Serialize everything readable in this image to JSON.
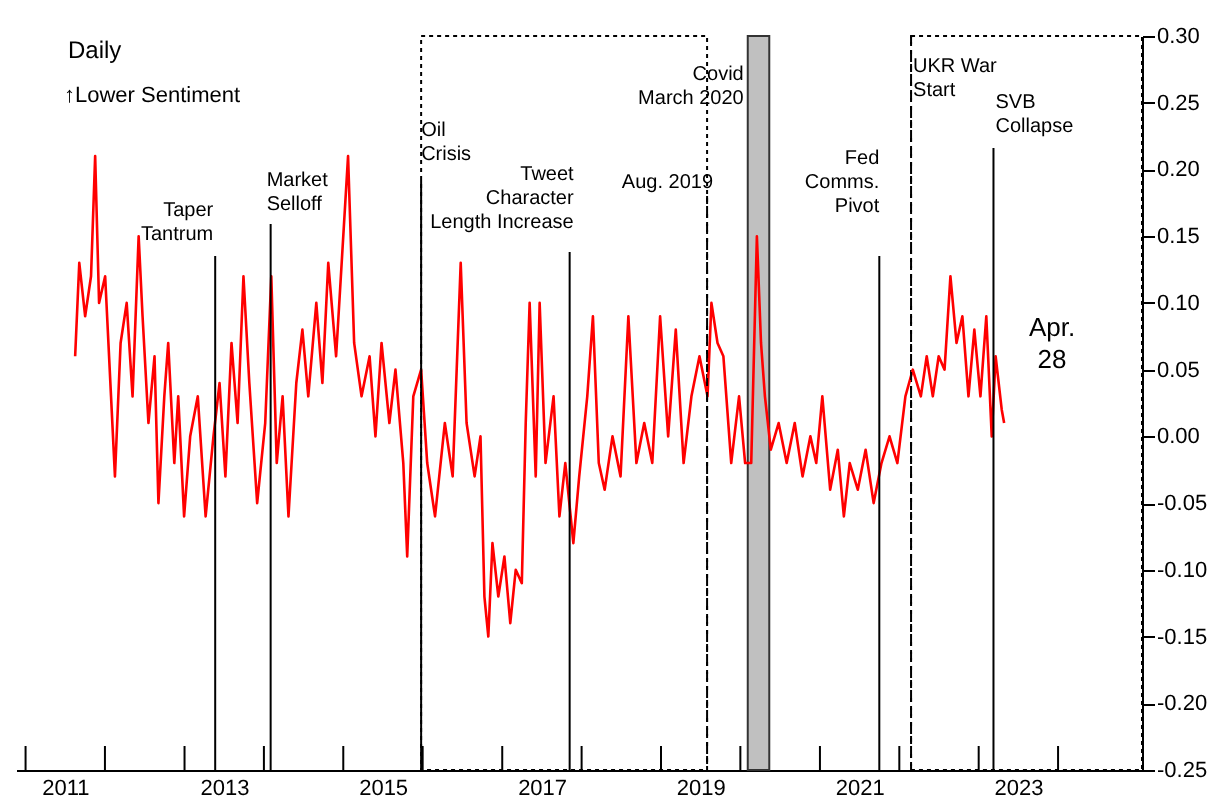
{
  "chart_data": {
    "type": "line",
    "title": "Daily",
    "annotations": [
      "↑Lower Sentiment",
      "Apr.\n28"
    ],
    "x": [
      "2011-08-17",
      "2011-09-05",
      "2011-10-02",
      "2011-10-29",
      "2011-11-17",
      "2011-12-05",
      "2012-01-02",
      "2012-01-29",
      "2012-02-16",
      "2012-03-13",
      "2012-04-10",
      "2012-05-07",
      "2012-06-04",
      "2012-06-22",
      "2012-07-19",
      "2012-08-16",
      "2012-09-03",
      "2012-09-30",
      "2012-10-18",
      "2012-11-15",
      "2012-12-03",
      "2012-12-30",
      "2013-01-27",
      "2013-03-03",
      "2013-04-08",
      "2013-05-14",
      "2013-06-11",
      "2013-07-08",
      "2013-08-05",
      "2013-09-02",
      "2013-09-29",
      "2013-10-26",
      "2013-12-01",
      "2014-01-07",
      "2014-02-04",
      "2014-03-01",
      "2014-03-28",
      "2014-04-24",
      "2014-05-30",
      "2014-06-27",
      "2014-07-24",
      "2014-08-30",
      "2014-09-27",
      "2014-10-24",
      "2014-11-29",
      "2015-01-23",
      "2015-02-20",
      "2015-03-26",
      "2015-05-02",
      "2015-05-29",
      "2015-06-26",
      "2015-08-01",
      "2015-08-29",
      "2015-10-04",
      "2015-10-22",
      "2015-11-19",
      "2015-12-25",
      "2016-01-22",
      "2016-02-27",
      "2016-04-12",
      "2016-05-18",
      "2016-06-24",
      "2016-07-21",
      "2016-08-27",
      "2016-09-23",
      "2016-10-11",
      "2016-10-29",
      "2016-11-17",
      "2016-12-14",
      "2017-01-11",
      "2017-02-07",
      "2017-03-04",
      "2017-04-01",
      "2017-04-19",
      "2017-05-07",
      "2017-06-04",
      "2017-06-22",
      "2017-07-19",
      "2017-08-25",
      "2017-09-21",
      "2017-10-18",
      "2017-11-24",
      "2017-12-21",
      "2018-01-27",
      "2018-02-22",
      "2018-03-21",
      "2018-04-17",
      "2018-05-23",
      "2018-06-29",
      "2018-08-04",
      "2018-09-10",
      "2018-10-16",
      "2018-11-22",
      "2018-12-28",
      "2019-02-03",
      "2019-03-10",
      "2019-04-15",
      "2019-05-21",
      "2019-06-27",
      "2019-08-03",
      "2019-08-21",
      "2019-09-18",
      "2019-10-15",
      "2019-11-20",
      "2019-12-26",
      "2020-01-23",
      "2020-02-20",
      "2020-03-17",
      "2020-04-05",
      "2020-04-23",
      "2020-05-20",
      "2020-06-25",
      "2020-08-01",
      "2020-09-07",
      "2020-10-13",
      "2020-11-18",
      "2020-12-15",
      "2021-01-12",
      "2021-02-17",
      "2021-03-24",
      "2021-04-21",
      "2021-05-18",
      "2021-06-24",
      "2021-07-30",
      "2021-09-05",
      "2021-10-11",
      "2021-11-17",
      "2021-12-23",
      "2022-01-29",
      "2022-03-04",
      "2022-04-10",
      "2022-05-07",
      "2022-06-04",
      "2022-07-01",
      "2022-07-28",
      "2022-08-24",
      "2022-09-21",
      "2022-10-18",
      "2022-11-15",
      "2022-12-12",
      "2023-01-09",
      "2023-02-05",
      "2023-03-02",
      "2023-03-20",
      "2023-04-17",
      "2023-04-28"
    ],
    "series": [
      {
        "color": "#ff0000",
        "values": [
          0.06,
          0.13,
          0.09,
          0.12,
          0.21,
          0.1,
          0.12,
          0.03,
          -0.03,
          0.07,
          0.1,
          0.03,
          0.15,
          0.09,
          0.01,
          0.06,
          -0.05,
          0.03,
          0.07,
          -0.02,
          0.03,
          -0.06,
          0.0,
          0.03,
          -0.06,
          0.0,
          0.04,
          -0.03,
          0.07,
          0.01,
          0.12,
          0.04,
          -0.05,
          0.01,
          0.12,
          -0.02,
          0.03,
          -0.06,
          0.04,
          0.08,
          0.03,
          0.1,
          0.04,
          0.13,
          0.06,
          0.21,
          0.07,
          0.03,
          0.06,
          0.0,
          0.07,
          0.01,
          0.05,
          -0.02,
          -0.09,
          0.03,
          0.05,
          -0.02,
          -0.06,
          0.01,
          -0.03,
          0.13,
          0.01,
          -0.03,
          0.0,
          -0.12,
          -0.15,
          -0.08,
          -0.12,
          -0.09,
          -0.14,
          -0.1,
          -0.11,
          0.01,
          0.1,
          -0.03,
          0.1,
          -0.02,
          0.03,
          -0.06,
          -0.02,
          -0.08,
          -0.03,
          0.03,
          0.09,
          -0.02,
          -0.04,
          0.0,
          -0.03,
          0.09,
          -0.02,
          0.01,
          -0.02,
          0.09,
          0.0,
          0.08,
          -0.02,
          0.03,
          0.06,
          0.03,
          0.1,
          0.07,
          0.06,
          -0.02,
          0.03,
          -0.02,
          -0.02,
          0.15,
          0.07,
          0.03,
          -0.01,
          0.01,
          -0.02,
          0.01,
          -0.03,
          0.0,
          -0.02,
          0.03,
          -0.04,
          -0.01,
          -0.06,
          -0.02,
          -0.04,
          -0.01,
          -0.05,
          -0.02,
          0.0,
          -0.02,
          0.03,
          0.05,
          0.03,
          0.06,
          0.03,
          0.06,
          0.05,
          0.12,
          0.07,
          0.09,
          0.03,
          0.08,
          0.03,
          0.09,
          0.0,
          0.06,
          0.02,
          0.01
        ]
      }
    ],
    "xlim": [
      "2010-11-18",
      "2025-01-21"
    ],
    "xticks": [
      {
        "value": "2011-01-01",
        "label": null
      },
      {
        "value": "2011-07-01",
        "label": "2011"
      },
      {
        "value": "2012-01-01",
        "label": null
      },
      {
        "value": "2013-01-01",
        "label": null
      },
      {
        "value": "2013-07-01",
        "label": "2013"
      },
      {
        "value": "2014-01-01",
        "label": null
      },
      {
        "value": "2015-01-01",
        "label": null
      },
      {
        "value": "2015-07-01",
        "label": "2015"
      },
      {
        "value": "2016-01-01",
        "label": null
      },
      {
        "value": "2017-01-01",
        "label": null
      },
      {
        "value": "2017-07-01",
        "label": "2017"
      },
      {
        "value": "2018-01-01",
        "label": null
      },
      {
        "value": "2019-01-01",
        "label": null
      },
      {
        "value": "2019-07-01",
        "label": "2019"
      },
      {
        "value": "2020-01-01",
        "label": null
      },
      {
        "value": "2021-01-01",
        "label": null
      },
      {
        "value": "2021-07-01",
        "label": "2021"
      },
      {
        "value": "2022-01-01",
        "label": null
      },
      {
        "value": "2023-01-01",
        "label": null
      },
      {
        "value": "2023-07-01",
        "label": "2023"
      },
      {
        "value": "2024-01-01",
        "label": null
      }
    ],
    "ylim": [
      -0.25,
      0.3
    ],
    "yticks": [
      {
        "value": -0.25,
        "label": "-0.25"
      },
      {
        "value": -0.2,
        "label": "-0.20"
      },
      {
        "value": -0.15,
        "label": "-0.15"
      },
      {
        "value": -0.1,
        "label": "-0.10"
      },
      {
        "value": -0.05,
        "label": "-0.05"
      },
      {
        "value": 0,
        "label": "0.00"
      },
      {
        "value": 0.05,
        "label": "0.05"
      },
      {
        "value": 0.1,
        "label": "0.10"
      },
      {
        "value": 0.15,
        "label": "0.15"
      },
      {
        "value": 0.2,
        "label": "0.20"
      },
      {
        "value": 0.25,
        "label": "0.25"
      },
      {
        "value": 0.3,
        "label": "0.30"
      }
    ],
    "ref_lines": [
      {
        "axis": "x",
        "value": "2013-05-22",
        "label": "Taper\nTantrum"
      },
      {
        "axis": "x",
        "value": "2014-02-01",
        "label": "Market\nSelloff"
      },
      {
        "axis": "x",
        "value": "2015-12-25",
        "label": "Oil\nCrisis"
      },
      {
        "axis": "x",
        "value": "2017-11-07",
        "label": "Tweet\nCharacter\nLength Increase"
      },
      {
        "axis": "x",
        "value": "2019-08-01",
        "label": "Aug. 2019",
        "line_style": "dashed"
      },
      {
        "axis": "x",
        "value": "2021-10-01",
        "label": "Fed\nComms.\nPivot"
      },
      {
        "axis": "x",
        "value": "2022-02-24",
        "label": "UKR War\nStart",
        "line_style": "dashed"
      },
      {
        "axis": "x",
        "value": "2023-03-10",
        "label": "SVB\nCollapse"
      }
    ],
    "bands": [
      {
        "axis": "x",
        "from": "2015-12-25",
        "to": "2019-08-01"
      },
      {
        "axis": "x",
        "from": "2020-02-04",
        "to": "2020-05-13",
        "label": "Covid\nMarch 2020",
        "color": "#c0c0c0"
      },
      {
        "axis": "x",
        "from": "2022-02-24",
        "to": "2025-01-21"
      }
    ]
  }
}
